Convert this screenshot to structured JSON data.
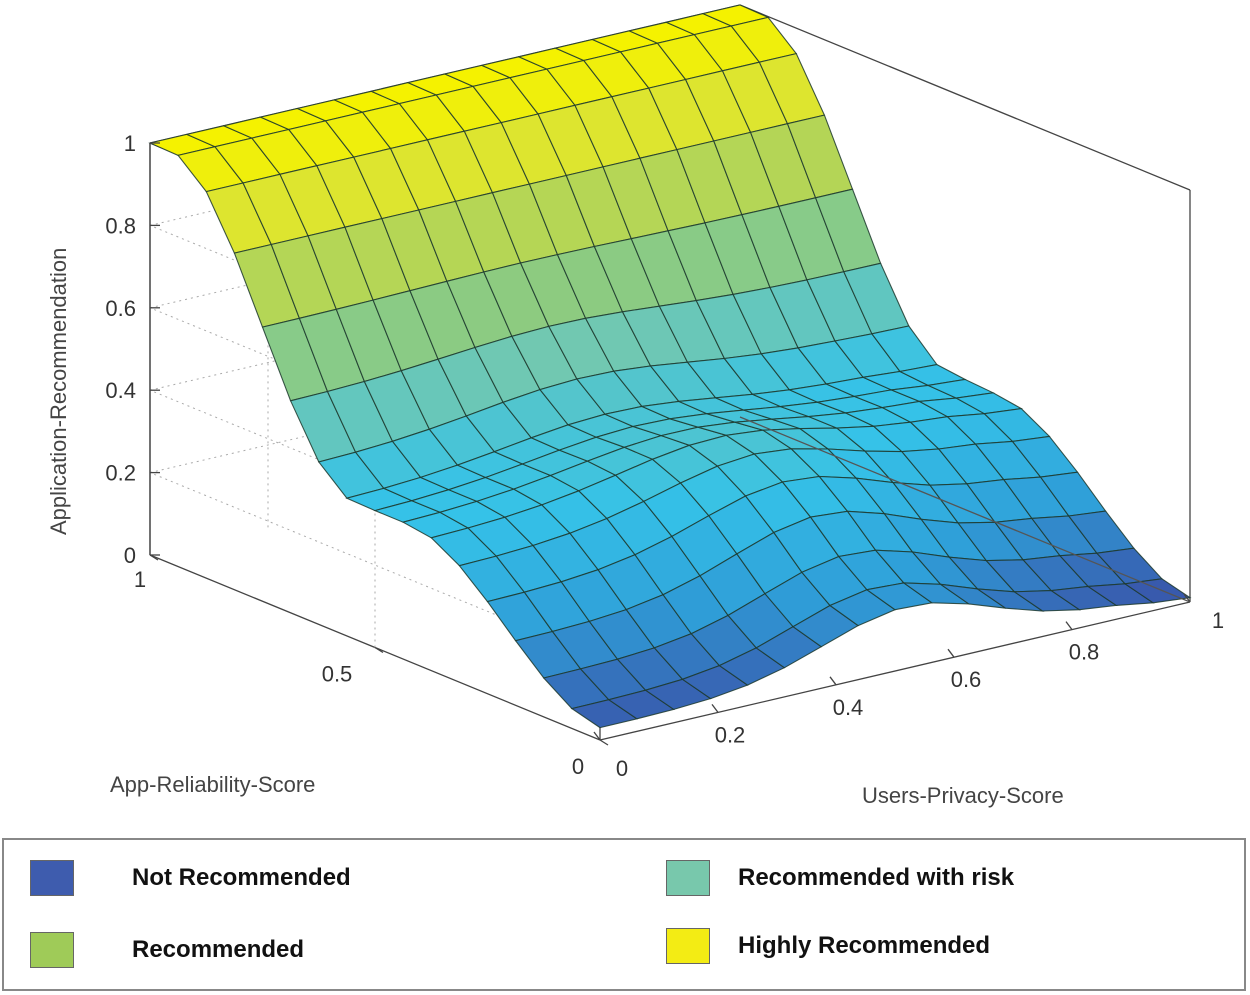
{
  "chart_data": {
    "type": "surface3d",
    "zlabel": "Application-Recommendation",
    "xlabel": "Users-Privacy-Score",
    "ylabel": "App-Reliability-Score",
    "xlim": [
      0,
      1
    ],
    "ylim": [
      0,
      1
    ],
    "zlim": [
      0,
      1
    ],
    "x_ticks": [
      "0",
      "0.2",
      "0.4",
      "0.6",
      "0.8",
      "1"
    ],
    "y_ticks": [
      "0",
      "0.5",
      "1"
    ],
    "z_ticks": [
      "0",
      "0.2",
      "0.4",
      "0.6",
      "0.8",
      "1"
    ],
    "grid": "on",
    "grid_size": 16,
    "surface_description": "z rises with App-Reliability-Score from ~0.03 at reliability 0 to 1 at reliability 1, plateau near 0.33 at mid reliability; a ridge near privacy 0.5 at low reliability",
    "sample_points": [
      {
        "reliability": 0,
        "privacy": 0,
        "z": 0.03
      },
      {
        "reliability": 0,
        "privacy": 0.5,
        "z": 0.12
      },
      {
        "reliability": 0,
        "privacy": 1,
        "z": 0.02
      },
      {
        "reliability": 0.5,
        "privacy": 0,
        "z": 0.33
      },
      {
        "reliability": 0.5,
        "privacy": 0.5,
        "z": 0.37
      },
      {
        "reliability": 0.5,
        "privacy": 1,
        "z": 0.34
      },
      {
        "reliability": 1,
        "privacy": 0,
        "z": 1.0
      },
      {
        "reliability": 1,
        "privacy": 0.5,
        "z": 1.0
      },
      {
        "reliability": 1,
        "privacy": 1,
        "z": 1.0
      }
    ],
    "colormap": [
      "#3a4fa6",
      "#2f9ed8",
      "#35c2e8",
      "#72c8b0",
      "#9acd68",
      "#d4e040",
      "#f5f200"
    ]
  },
  "legend": {
    "items": [
      {
        "label": "Not Recommended",
        "color": "#3e5cae"
      },
      {
        "label": "Recommended with risk",
        "color": "#78c8ac"
      },
      {
        "label": "Recommended",
        "color": "#9fcb58"
      },
      {
        "label": "Highly Recommended",
        "color": "#f3ec14"
      }
    ]
  }
}
